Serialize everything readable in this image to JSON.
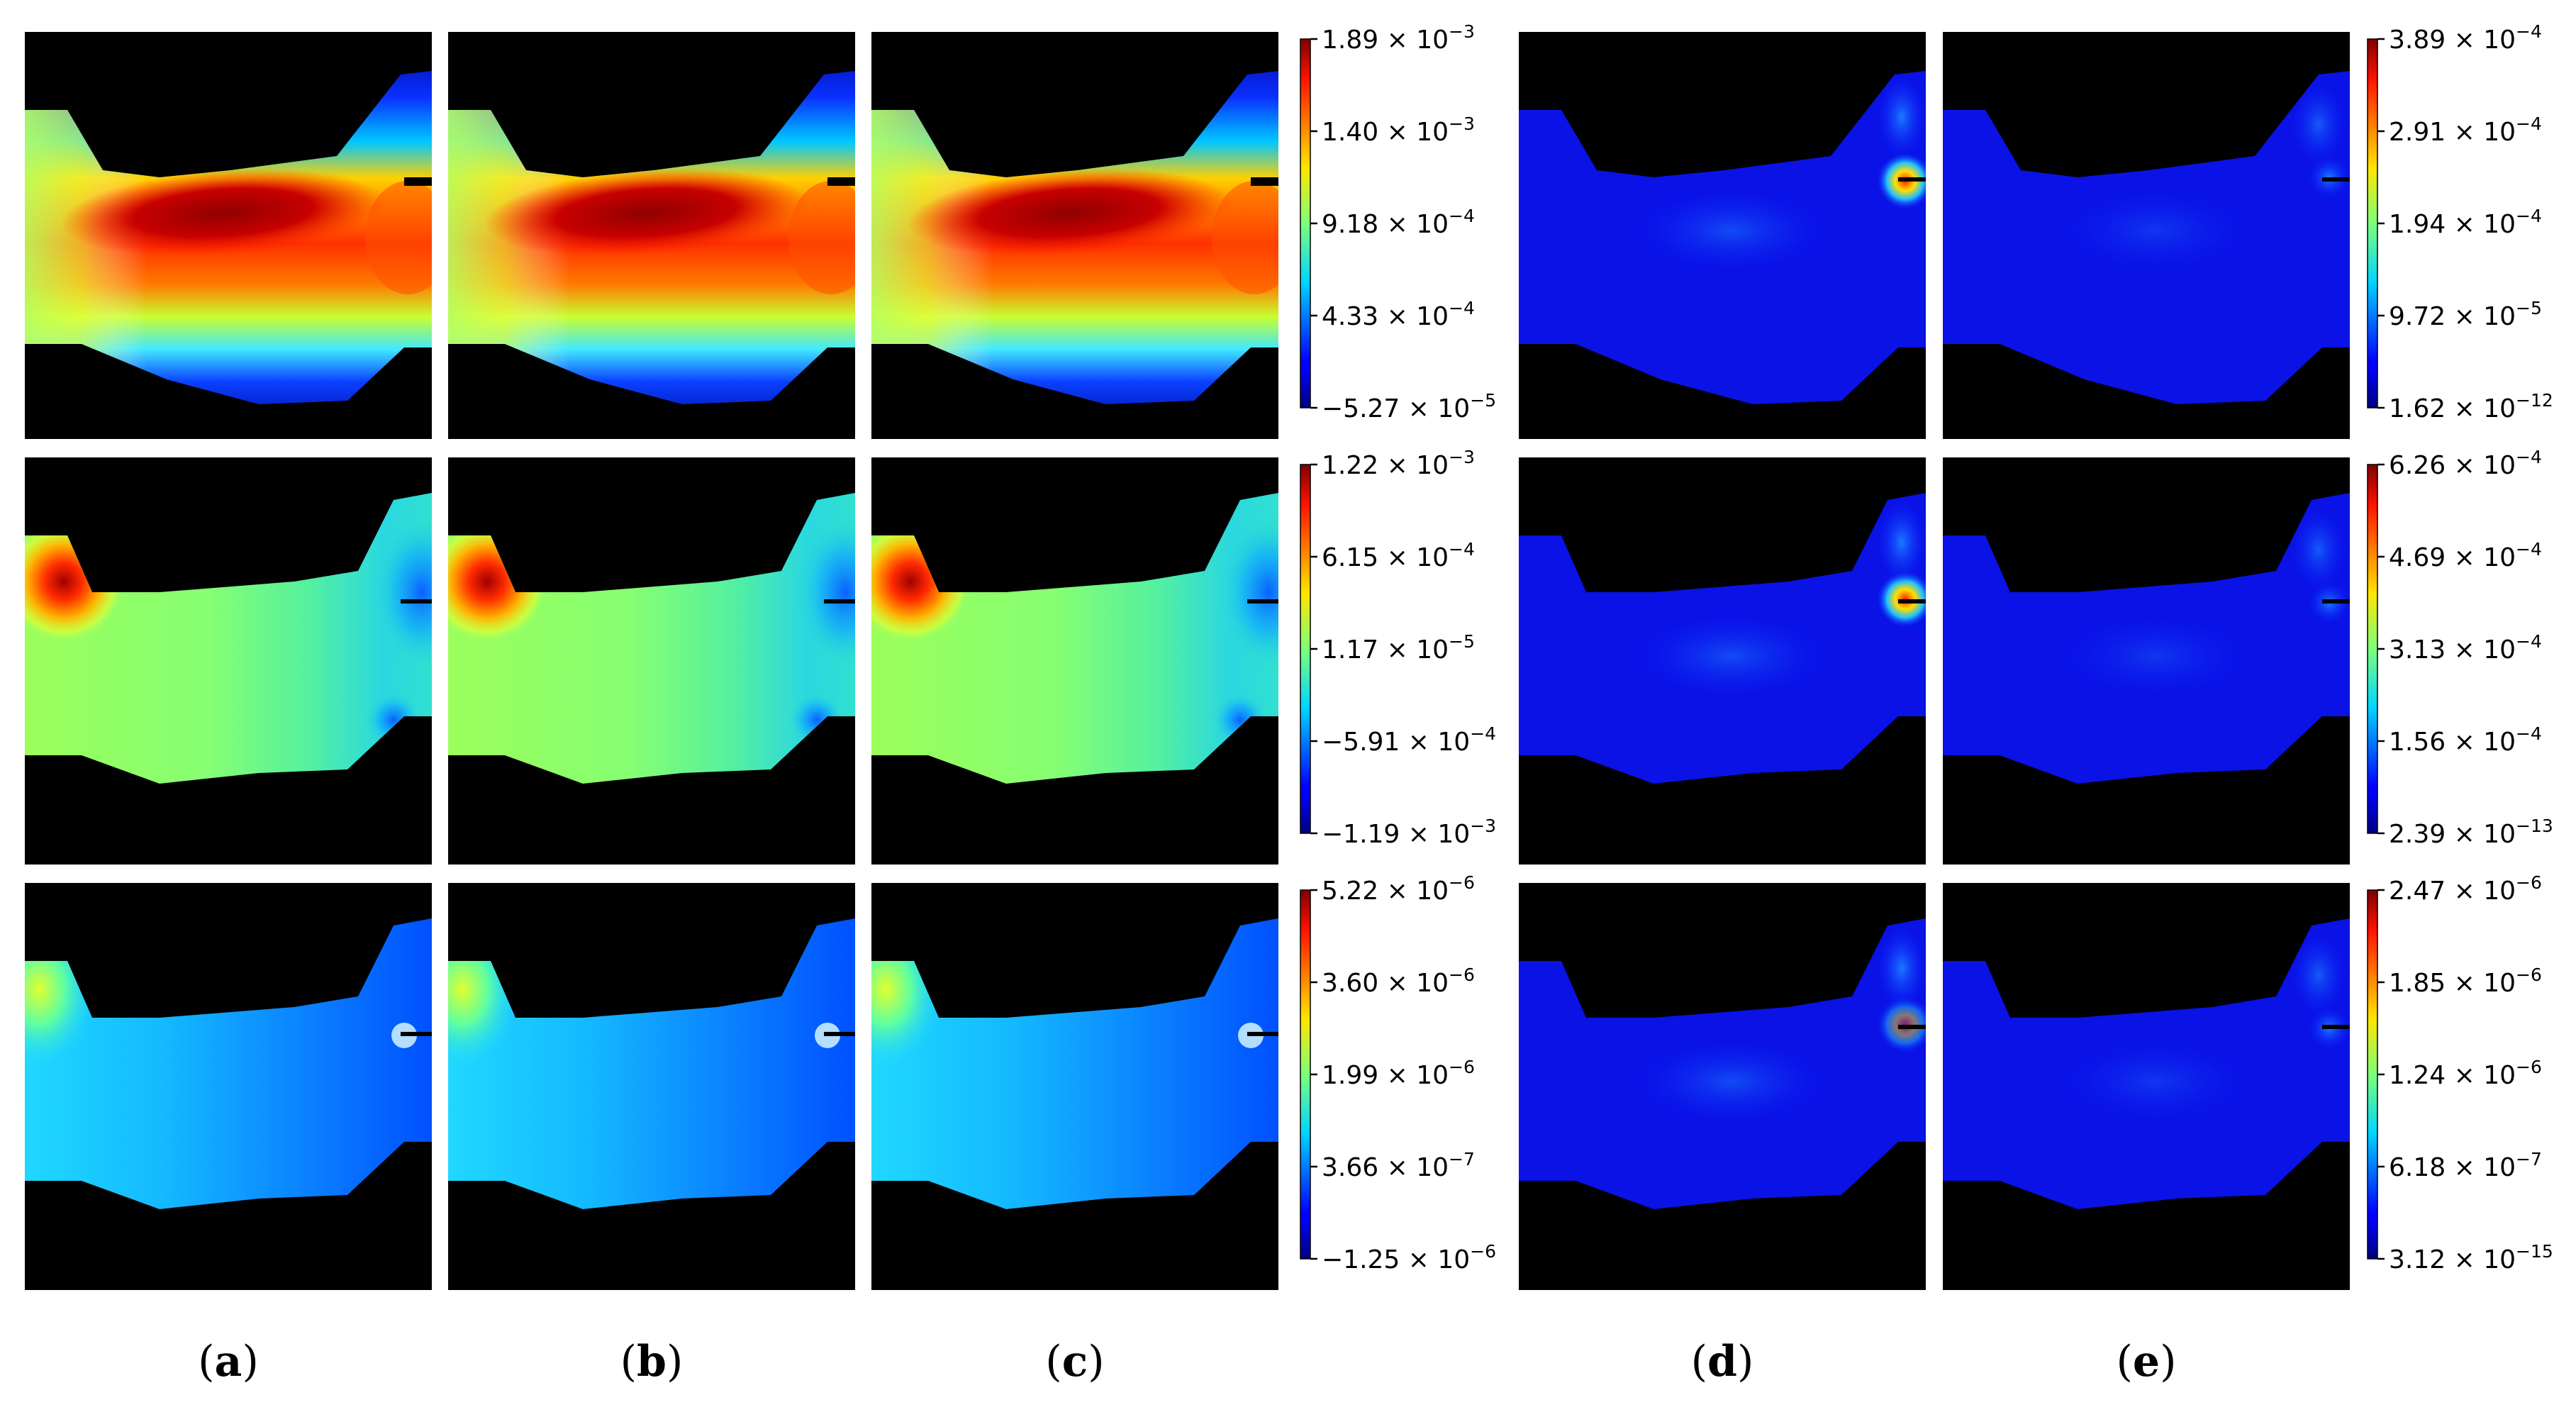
{
  "chart_data": {
    "type": "heatmap",
    "panel_labels": [
      "a",
      "b",
      "c",
      "d",
      "e"
    ],
    "colormap": "jet",
    "background_color": "#000000",
    "rows": [
      {
        "left_colorbar": {
          "ticks": [
            {
              "m": "1.89",
              "e": "−3",
              "sign": ""
            },
            {
              "m": "1.40",
              "e": "−3",
              "sign": ""
            },
            {
              "m": "9.18",
              "e": "−4",
              "sign": ""
            },
            {
              "m": "4.33",
              "e": "−4",
              "sign": ""
            },
            {
              "m": "5.27",
              "e": "−5",
              "sign": "−"
            }
          ]
        },
        "right_colorbar": {
          "ticks": [
            {
              "m": "3.89",
              "e": "−4",
              "sign": ""
            },
            {
              "m": "2.91",
              "e": "−4",
              "sign": ""
            },
            {
              "m": "1.94",
              "e": "−4",
              "sign": ""
            },
            {
              "m": "9.72",
              "e": "−5",
              "sign": ""
            },
            {
              "m": "1.62",
              "e": "−12",
              "sign": ""
            }
          ]
        }
      },
      {
        "left_colorbar": {
          "ticks": [
            {
              "m": "1.22",
              "e": "−3",
              "sign": ""
            },
            {
              "m": "6.15",
              "e": "−4",
              "sign": ""
            },
            {
              "m": "1.17",
              "e": "−5",
              "sign": ""
            },
            {
              "m": "5.91",
              "e": "−4",
              "sign": "−"
            },
            {
              "m": "1.19",
              "e": "−3",
              "sign": "−"
            }
          ]
        },
        "right_colorbar": {
          "ticks": [
            {
              "m": "6.26",
              "e": "−4",
              "sign": ""
            },
            {
              "m": "4.69",
              "e": "−4",
              "sign": ""
            },
            {
              "m": "3.13",
              "e": "−4",
              "sign": ""
            },
            {
              "m": "1.56",
              "e": "−4",
              "sign": ""
            },
            {
              "m": "2.39",
              "e": "−13",
              "sign": ""
            }
          ]
        }
      },
      {
        "left_colorbar": {
          "ticks": [
            {
              "m": "5.22",
              "e": "−6",
              "sign": ""
            },
            {
              "m": "3.60",
              "e": "−6",
              "sign": ""
            },
            {
              "m": "1.99",
              "e": "−6",
              "sign": ""
            },
            {
              "m": "3.66",
              "e": "−7",
              "sign": ""
            },
            {
              "m": "1.25",
              "e": "−6",
              "sign": "−"
            }
          ]
        },
        "right_colorbar": {
          "ticks": [
            {
              "m": "2.47",
              "e": "−6",
              "sign": ""
            },
            {
              "m": "1.85",
              "e": "−6",
              "sign": ""
            },
            {
              "m": "1.24",
              "e": "−6",
              "sign": ""
            },
            {
              "m": "6.18",
              "e": "−7",
              "sign": ""
            },
            {
              "m": "3.12",
              "e": "−15",
              "sign": ""
            }
          ]
        }
      }
    ]
  }
}
